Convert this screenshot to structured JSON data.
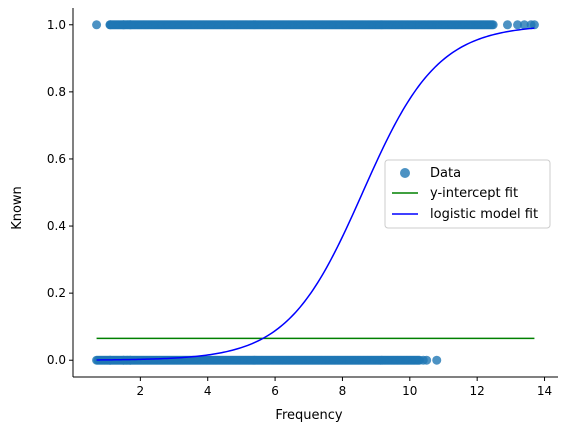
{
  "chart_data": {
    "type": "scatter",
    "xlabel": "Frequency",
    "ylabel": "Known",
    "xlim": [
      0.0,
      14.4
    ],
    "ylim": [
      -0.05,
      1.05
    ],
    "xticks": [
      2,
      4,
      6,
      8,
      10,
      12,
      14
    ],
    "yticks": [
      0.0,
      0.2,
      0.4,
      0.6,
      0.8,
      1.0
    ],
    "xtick_labels": [
      "2",
      "4",
      "6",
      "8",
      "10",
      "12",
      "14"
    ],
    "ytick_labels": [
      "0.0",
      "0.2",
      "0.4",
      "0.6",
      "0.8",
      "1.0"
    ],
    "grid": false,
    "legend_position": "center-right",
    "series": [
      {
        "name": "Data",
        "kind": "scatter",
        "color": "#1f77b4",
        "bands": [
          {
            "y": 1,
            "x_dense": [
              1.1,
              12.5
            ],
            "x_isolated": [
              0.7,
              1.1,
              1.5,
              1.7,
              12.9,
              13.2,
              13.4,
              13.6,
              13.7
            ]
          },
          {
            "y": 0,
            "x_dense": [
              0.7,
              10.3
            ],
            "x_isolated": [
              1.1,
              1.5,
              1.7,
              10.4,
              10.5,
              10.8
            ]
          }
        ]
      },
      {
        "name": "y-intercept fit",
        "kind": "line",
        "color": "#008000",
        "x": [
          0.7,
          13.7
        ],
        "y": [
          0.065,
          0.065
        ]
      },
      {
        "name": "logistic model fit",
        "kind": "line",
        "color": "#0000ff",
        "function": "logistic",
        "midpoint": 8.6,
        "slope": 0.9,
        "x_range": [
          0.7,
          13.7
        ]
      }
    ]
  }
}
